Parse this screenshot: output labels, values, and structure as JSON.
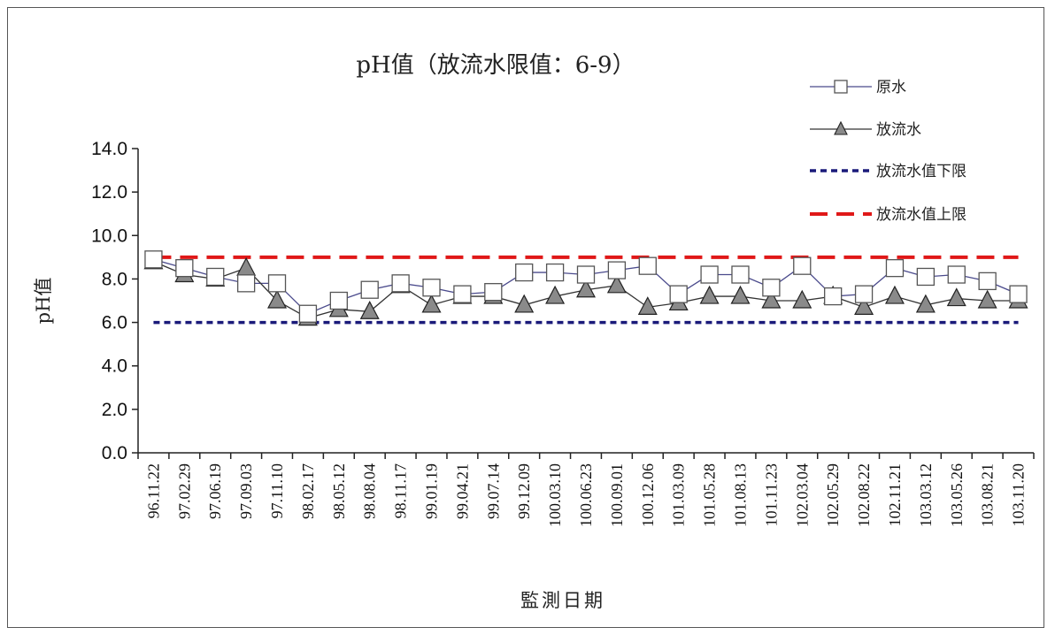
{
  "chart_data": {
    "type": "line",
    "title": "pH值（放流水限值：6-9）",
    "xlabel": "監測日期",
    "ylabel": "pH值",
    "ylim": [
      0,
      14
    ],
    "yticks": [
      "0.0",
      "2.0",
      "4.0",
      "6.0",
      "8.0",
      "10.0",
      "12.0",
      "14.0"
    ],
    "grid": false,
    "legend_position": "top-right",
    "categories": [
      "96.11.22",
      "97.02.29",
      "97.06.19",
      "97.09.03",
      "97.11.10",
      "98.02.17",
      "98.05.12",
      "98.08.04",
      "98.11.17",
      "99.01.19",
      "99.04.21",
      "99.07.14",
      "99.12.09",
      "100.03.10",
      "100.06.23",
      "100.09.01",
      "100.12.06",
      "101.03.09",
      "101.05.28",
      "101.08.13",
      "101.11.23",
      "102.03.04",
      "102.05.29",
      "102.08.22",
      "102.11.21",
      "103.03.12",
      "103.05.26",
      "103.08.21",
      "103.11.20"
    ],
    "series": [
      {
        "name": "原水",
        "marker": "square",
        "color": "#4a4a8c",
        "values": [
          8.9,
          8.5,
          8.1,
          7.8,
          7.8,
          6.4,
          7.0,
          7.5,
          7.8,
          7.6,
          7.3,
          7.4,
          8.3,
          8.3,
          8.2,
          8.4,
          8.6,
          7.3,
          8.2,
          8.2,
          7.6,
          8.6,
          7.2,
          7.3,
          8.5,
          8.1,
          8.2,
          7.9,
          7.3
        ]
      },
      {
        "name": "放流水",
        "marker": "triangle",
        "color": "#333333",
        "values": [
          8.8,
          8.2,
          8.0,
          8.5,
          7.0,
          6.2,
          6.6,
          6.5,
          7.7,
          6.8,
          7.2,
          7.2,
          6.8,
          7.2,
          7.5,
          7.7,
          6.7,
          6.9,
          7.2,
          7.2,
          7.0,
          7.0,
          7.2,
          6.7,
          7.2,
          6.8,
          7.1,
          7.0,
          7.0
        ]
      },
      {
        "name": "放流水值下限",
        "style": "dotted",
        "color": "#1a1a7a",
        "value": 6.0
      },
      {
        "name": "放流水值上限",
        "style": "dashed",
        "color": "#e01818",
        "value": 9.0
      }
    ]
  }
}
